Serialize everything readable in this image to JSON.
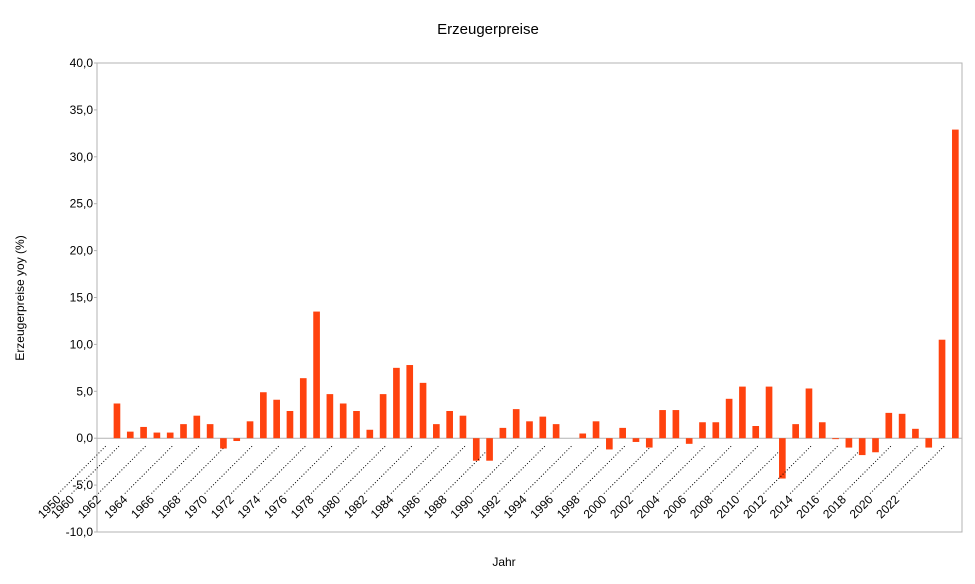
{
  "chart_data": {
    "type": "bar",
    "title": "Erzeugerpreise",
    "x_label": "Jahr",
    "y_label": "Erzeugerpreise yoy (%)",
    "categories": [
      "1950",
      "1960",
      null,
      "1962",
      null,
      "1964",
      null,
      "1966",
      null,
      "1968",
      null,
      "1970",
      null,
      "1972",
      null,
      "1974",
      null,
      "1976",
      null,
      "1978",
      null,
      "1980",
      null,
      "1982",
      null,
      "1984",
      null,
      "1986",
      null,
      "1988",
      null,
      "1990",
      null,
      "1992",
      null,
      "1994",
      null,
      "1996",
      null,
      "1998",
      null,
      "2000",
      null,
      "2002",
      null,
      "2004",
      null,
      "2006",
      null,
      "2008",
      null,
      "2010",
      null,
      "2012",
      null,
      "2014",
      null,
      "2016",
      null,
      "2018",
      null,
      "2020",
      null,
      "2022",
      null
    ],
    "values": [
      null,
      3.7,
      0.7,
      1.2,
      0.6,
      0.6,
      1.5,
      2.4,
      1.5,
      -1.1,
      -0.3,
      1.8,
      4.9,
      4.1,
      2.9,
      6.4,
      13.5,
      4.7,
      3.7,
      2.9,
      0.9,
      4.7,
      7.5,
      7.8,
      5.9,
      1.5,
      2.9,
      2.4,
      -2.4,
      -2.4,
      1.1,
      3.1,
      1.8,
      2.3,
      1.5,
      0,
      0.5,
      1.8,
      -1.2,
      1.1,
      -0.4,
      -1.0,
      3.0,
      3.0,
      -0.6,
      1.7,
      1.7,
      4.2,
      5.5,
      1.3,
      5.5,
      -4.3,
      1.5,
      5.3,
      1.7,
      -0.1,
      -1.0,
      -1.8,
      -1.5,
      2.7,
      2.6,
      1.0,
      -1.0,
      10.5,
      32.9
    ],
    "color": "#ff420e",
    "ylim": [
      -10,
      40
    ],
    "yticks": [
      {
        "value": -10,
        "label": "-10,0"
      },
      {
        "value": -5,
        "label": "-5,0"
      },
      {
        "value": 0,
        "label": "0,0"
      },
      {
        "value": 5,
        "label": "5,0"
      },
      {
        "value": 10,
        "label": "10,0"
      },
      {
        "value": 15,
        "label": "15,0"
      },
      {
        "value": 20,
        "label": "20,0"
      },
      {
        "value": 25,
        "label": "25,0"
      },
      {
        "value": 30,
        "label": "30,0"
      },
      {
        "value": 35,
        "label": "35,0"
      },
      {
        "value": 40,
        "label": "40,0"
      }
    ],
    "grid": false
  }
}
